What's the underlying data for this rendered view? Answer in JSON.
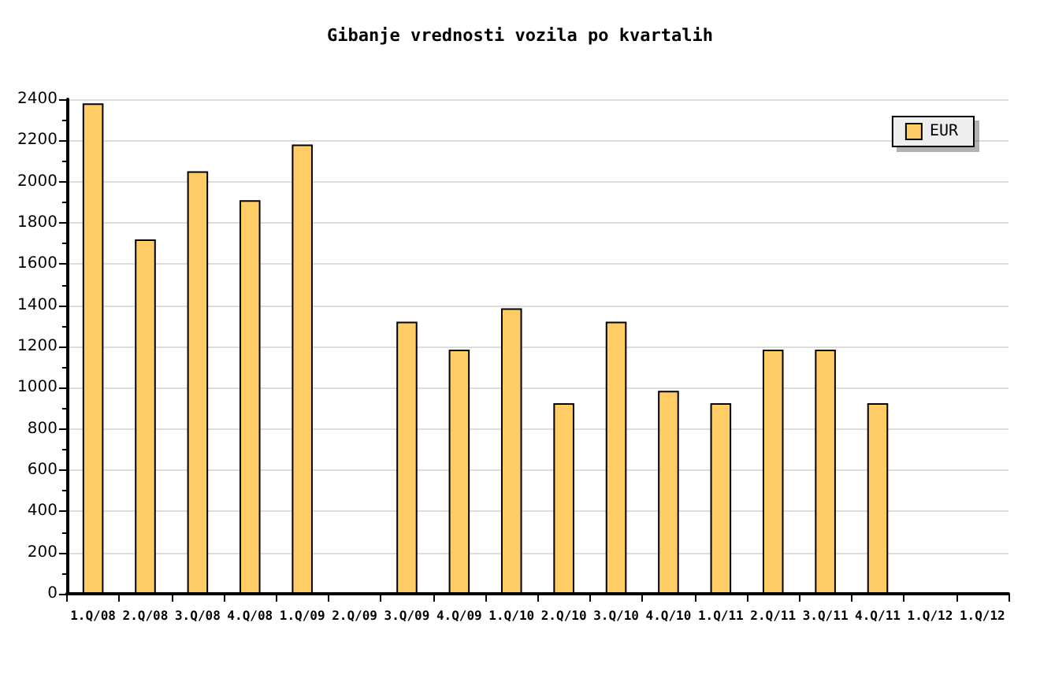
{
  "chart_data": {
    "type": "bar",
    "title": "Gibanje vrednosti vozila po kvartalih",
    "categories": [
      "1.Q/08",
      "2.Q/08",
      "3.Q/08",
      "4.Q/08",
      "1.Q/09",
      "2.Q/09",
      "3.Q/09",
      "4.Q/09",
      "1.Q/10",
      "2.Q/10",
      "3.Q/10",
      "4.Q/10",
      "1.Q/11",
      "2.Q/11",
      "3.Q/11",
      "4.Q/11",
      "1.Q/12",
      "1.Q/12"
    ],
    "series": [
      {
        "name": "EUR",
        "color": "#ffcc66",
        "values": [
          2380,
          1720,
          2050,
          1910,
          2180,
          null,
          1320,
          1185,
          1385,
          925,
          1320,
          985,
          925,
          1185,
          1185,
          925,
          null,
          null
        ]
      }
    ],
    "ylim": [
      0,
      2400
    ],
    "yticks": [
      0,
      200,
      400,
      600,
      800,
      1000,
      1200,
      1400,
      1600,
      1800,
      2000,
      2200,
      2400
    ],
    "grid": "y",
    "legend": "top right"
  }
}
